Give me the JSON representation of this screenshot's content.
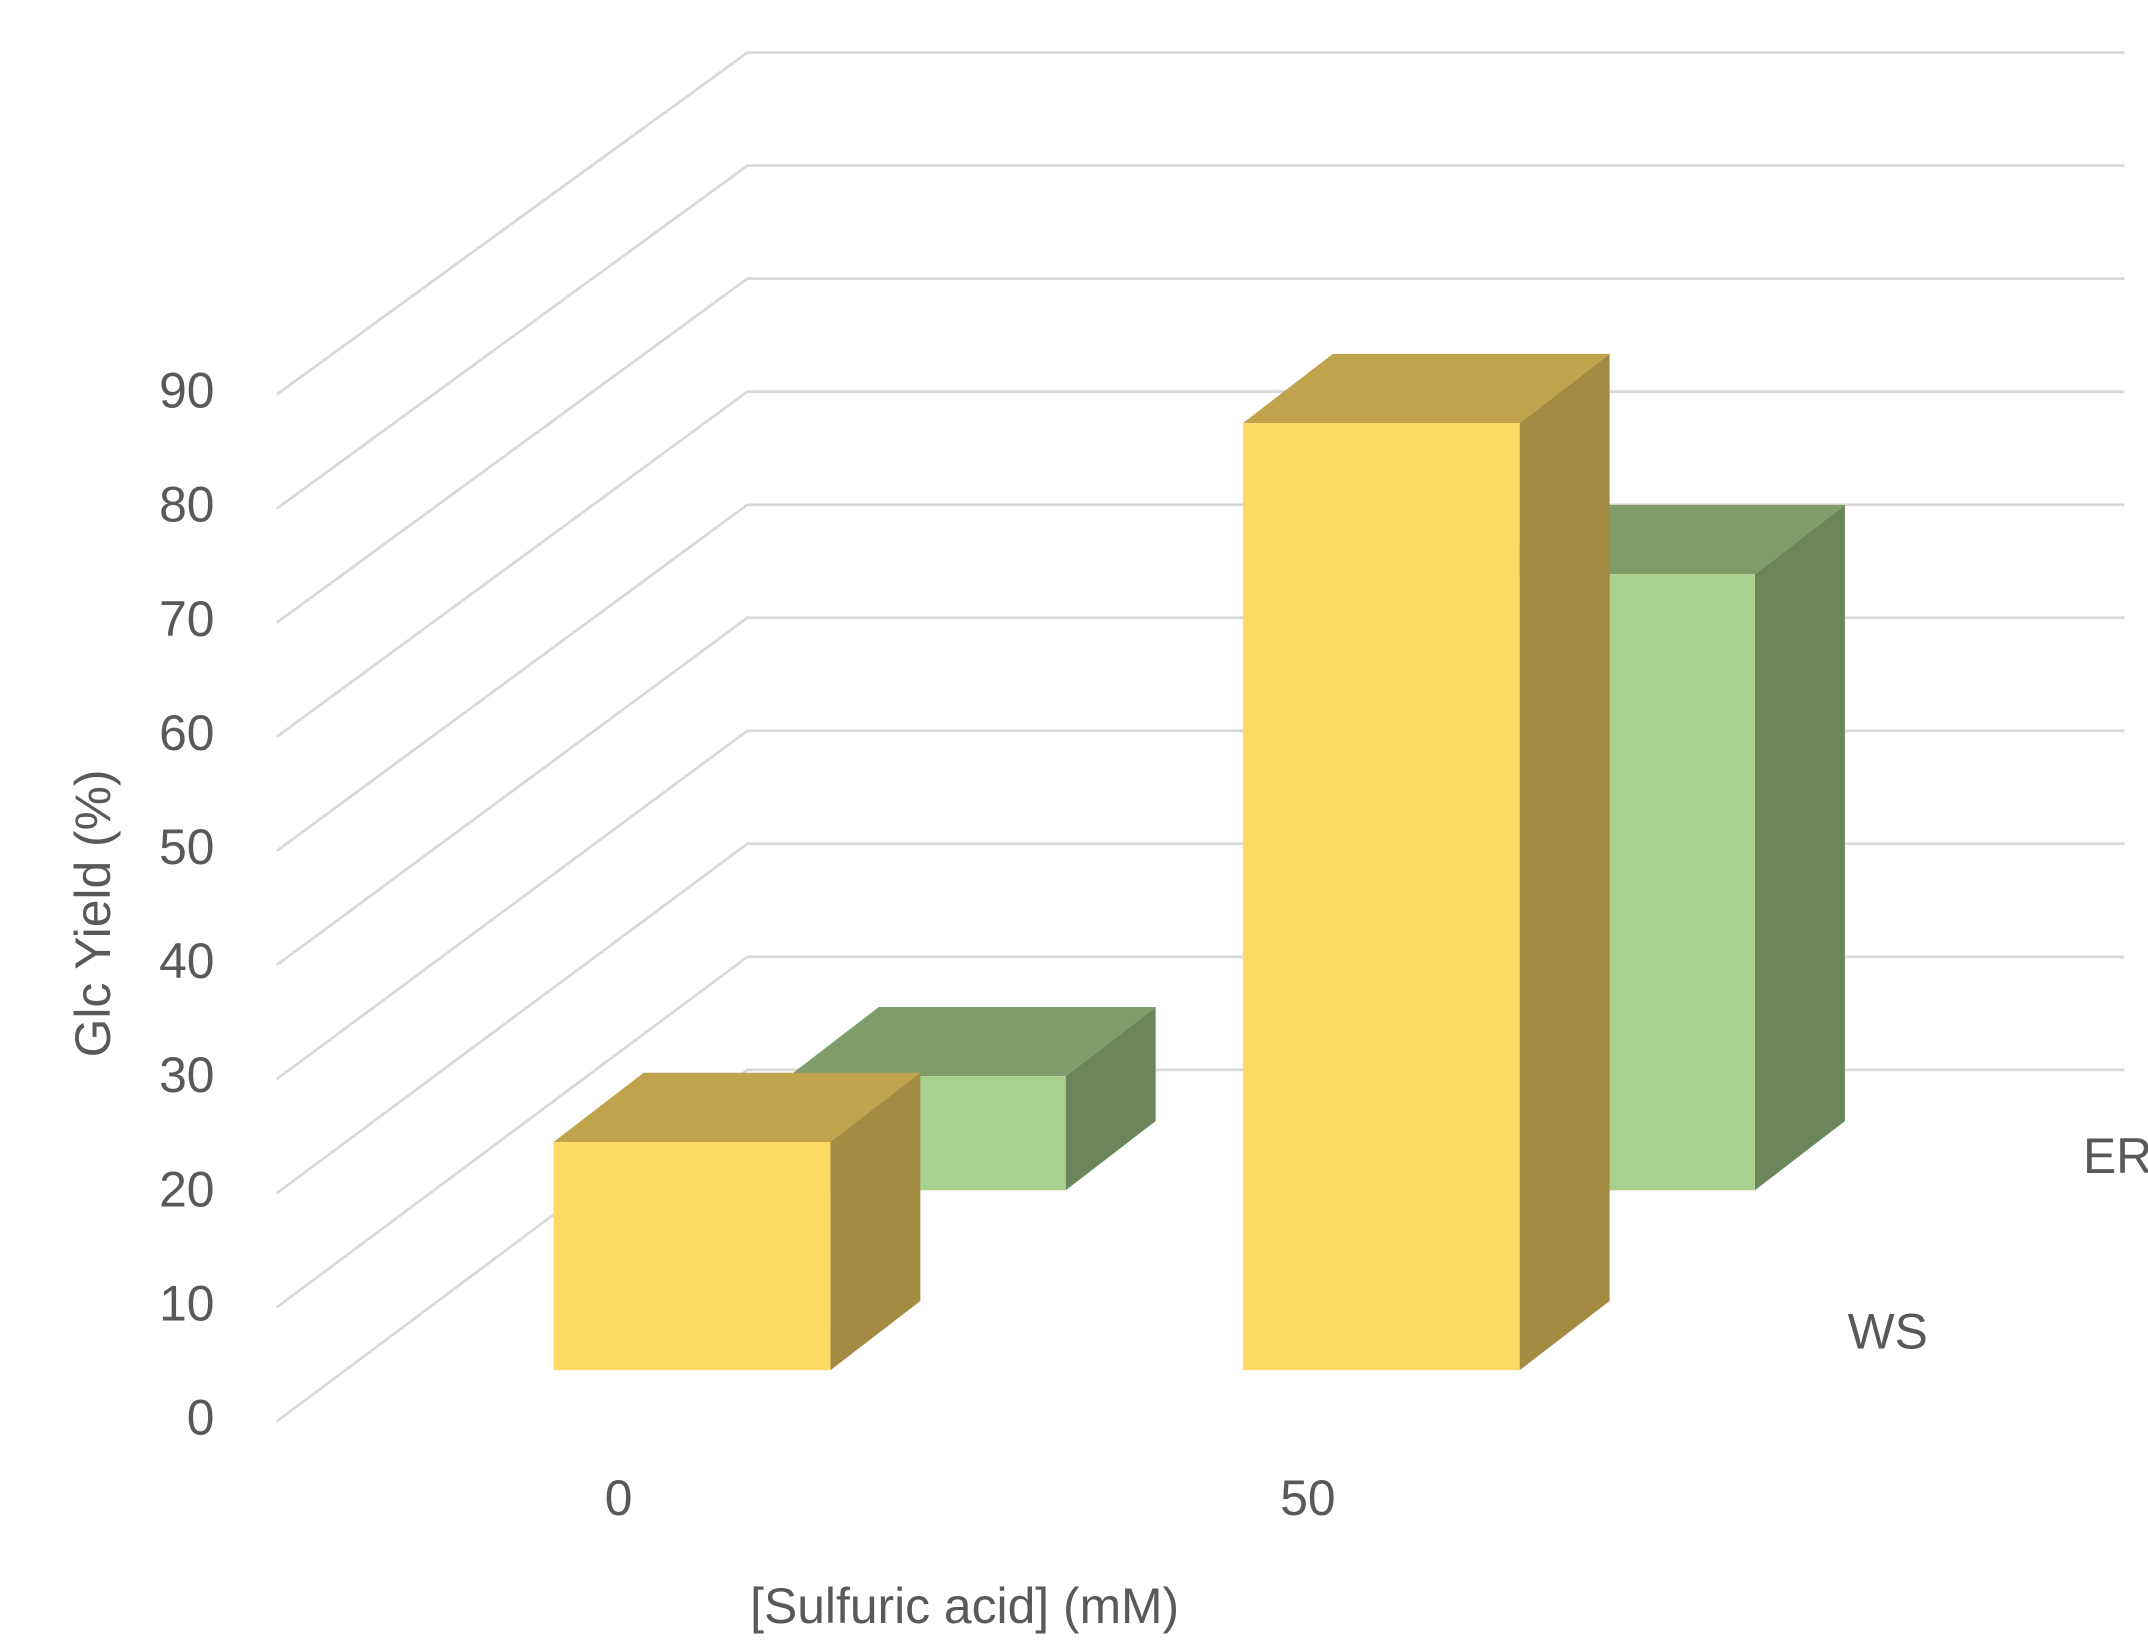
{
  "chart_data": {
    "type": "bar3d",
    "xlabel": "[Sulfuric acid] (mM)",
    "ylabel": "Glc Yield (%)",
    "categories": [
      "0",
      "50"
    ],
    "series": [
      {
        "name": "WS",
        "color": "#FFD966",
        "values": [
          20,
          83
        ]
      },
      {
        "name": "ER",
        "color": "#A9D18E",
        "values": [
          10,
          54
        ]
      }
    ],
    "ylim": [
      0,
      90
    ],
    "yticks": [
      0,
      10,
      20,
      30,
      40,
      50,
      60,
      70,
      80,
      90
    ],
    "grid": true
  }
}
